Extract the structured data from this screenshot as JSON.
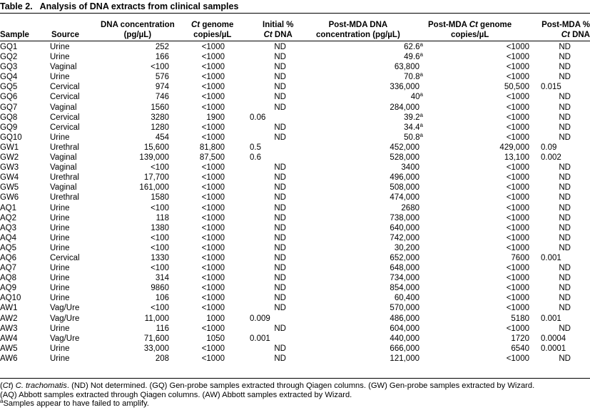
{
  "table": {
    "label": "Table 2.",
    "title": "Analysis of DNA extracts from clinical samples",
    "headers": {
      "sample": "Sample",
      "source": "Source",
      "dna_conc_1": "DNA concentration",
      "dna_conc_2": "(pg/µL)",
      "ct_genome_1a": "Ct",
      "ct_genome_1b": " genome",
      "ct_genome_2": "copies/µL",
      "initial_1": "Initial %",
      "initial_2a": "Ct",
      "initial_2b": " DNA",
      "post_conc_1": "Post-MDA DNA",
      "post_conc_2": "concentration (pg/µL)",
      "post_ct_1a": "Post-MDA ",
      "post_ct_1b": "Ct",
      "post_ct_1c": " genome",
      "post_ct_2": "copies/µL",
      "post_pct_1": "Post-MDA %",
      "post_pct_2a": "Ct",
      "post_pct_2b": " DNA"
    },
    "rows": [
      {
        "sample": "GQ1",
        "source": "Urine",
        "dna": "252",
        "ct": "<1000",
        "init": "ND",
        "post": "62.6",
        "sup": "a",
        "postct": "<1000",
        "postpct": "ND"
      },
      {
        "sample": "GQ2",
        "source": "Urine",
        "dna": "166",
        "ct": "<1000",
        "init": "ND",
        "post": "49.6",
        "sup": "a",
        "postct": "<1000",
        "postpct": "ND"
      },
      {
        "sample": "GQ3",
        "source": "Vaginal",
        "dna": "<100",
        "ct": "<1000",
        "init": "ND",
        "post": "63,800",
        "sup": "",
        "postct": "<1000",
        "postpct": "ND"
      },
      {
        "sample": "GQ4",
        "source": "Urine",
        "dna": "576",
        "ct": "<1000",
        "init": "ND",
        "post": "70.8",
        "sup": "a",
        "postct": "<1000",
        "postpct": "ND"
      },
      {
        "sample": "GQ5",
        "source": "Cervical",
        "dna": "974",
        "ct": "<1000",
        "init": "ND",
        "post": "336,000",
        "sup": "",
        "postct": "50,500",
        "postpct": "0.015"
      },
      {
        "sample": "GQ6",
        "source": "Cervical",
        "dna": "746",
        "ct": "<1000",
        "init": "ND",
        "post": "40",
        "sup": "a",
        "postct": "<1000",
        "postpct": "ND"
      },
      {
        "sample": "GQ7",
        "source": "Vaginal",
        "dna": "1560",
        "ct": "<1000",
        "init": "ND",
        "post": "284,000",
        "sup": "",
        "postct": "<1000",
        "postpct": "ND"
      },
      {
        "sample": "GQ8",
        "source": "Cervical",
        "dna": "3280",
        "ct": "1900",
        "init": "0.06",
        "post": "39.2",
        "sup": "a",
        "postct": "<1000",
        "postpct": "ND"
      },
      {
        "sample": "GQ9",
        "source": "Cervical",
        "dna": "1280",
        "ct": "<1000",
        "init": "ND",
        "post": "34.4",
        "sup": "a",
        "postct": "<1000",
        "postpct": "ND"
      },
      {
        "sample": "GQ10",
        "source": "Urine",
        "dna": "454",
        "ct": "<1000",
        "init": "ND",
        "post": "50.8",
        "sup": "a",
        "postct": "<1000",
        "postpct": "ND"
      },
      {
        "sample": "GW1",
        "source": "Urethral",
        "dna": "15,600",
        "ct": "81,800",
        "init": "0.5",
        "post": "452,000",
        "sup": "",
        "postct": "429,000",
        "postpct": "0.09"
      },
      {
        "sample": "GW2",
        "source": "Vaginal",
        "dna": "139,000",
        "ct": "87,500",
        "init": "0.6",
        "post": "528,000",
        "sup": "",
        "postct": "13,100",
        "postpct": "0.002"
      },
      {
        "sample": "GW3",
        "source": "Vaginal",
        "dna": "<100",
        "ct": "<1000",
        "init": "ND",
        "post": "3400",
        "sup": "",
        "postct": "<1000",
        "postpct": "ND"
      },
      {
        "sample": "GW4",
        "source": "Urethral",
        "dna": "17,700",
        "ct": "<1000",
        "init": "ND",
        "post": "496,000",
        "sup": "",
        "postct": "<1000",
        "postpct": "ND"
      },
      {
        "sample": "GW5",
        "source": "Vaginal",
        "dna": "161,000",
        "ct": "<1000",
        "init": "ND",
        "post": "508,000",
        "sup": "",
        "postct": "<1000",
        "postpct": "ND"
      },
      {
        "sample": "GW6",
        "source": "Urethral",
        "dna": "1580",
        "ct": "<1000",
        "init": "ND",
        "post": "474,000",
        "sup": "",
        "postct": "<1000",
        "postpct": "ND"
      },
      {
        "sample": "AQ1",
        "source": "Urine",
        "dna": "<100",
        "ct": "<1000",
        "init": "ND",
        "post": "2680",
        "sup": "",
        "postct": "<1000",
        "postpct": "ND"
      },
      {
        "sample": "AQ2",
        "source": "Urine",
        "dna": "118",
        "ct": "<1000",
        "init": "ND",
        "post": "738,000",
        "sup": "",
        "postct": "<1000",
        "postpct": "ND"
      },
      {
        "sample": "AQ3",
        "source": "Urine",
        "dna": "1380",
        "ct": "<1000",
        "init": "ND",
        "post": "640,000",
        "sup": "",
        "postct": "<1000",
        "postpct": "ND"
      },
      {
        "sample": "AQ4",
        "source": "Urine",
        "dna": "<100",
        "ct": "<1000",
        "init": "ND",
        "post": "742,000",
        "sup": "",
        "postct": "<1000",
        "postpct": "ND"
      },
      {
        "sample": "AQ5",
        "source": "Urine",
        "dna": "<100",
        "ct": "<1000",
        "init": "ND",
        "post": "30,200",
        "sup": "",
        "postct": "<1000",
        "postpct": "ND"
      },
      {
        "sample": "AQ6",
        "source": "Cervical",
        "dna": "1330",
        "ct": "<1000",
        "init": "ND",
        "post": "652,000",
        "sup": "",
        "postct": "7600",
        "postpct": "0.001"
      },
      {
        "sample": "AQ7",
        "source": "Urine",
        "dna": "<100",
        "ct": "<1000",
        "init": "ND",
        "post": "648,000",
        "sup": "",
        "postct": "<1000",
        "postpct": "ND"
      },
      {
        "sample": "AQ8",
        "source": "Urine",
        "dna": "314",
        "ct": "<1000",
        "init": "ND",
        "post": "734,000",
        "sup": "",
        "postct": "<1000",
        "postpct": "ND"
      },
      {
        "sample": "AQ9",
        "source": "Urine",
        "dna": "9860",
        "ct": "<1000",
        "init": "ND",
        "post": "854,000",
        "sup": "",
        "postct": "<1000",
        "postpct": "ND"
      },
      {
        "sample": "AQ10",
        "source": "Urine",
        "dna": "106",
        "ct": "<1000",
        "init": "ND",
        "post": "60,400",
        "sup": "",
        "postct": "<1000",
        "postpct": "ND"
      },
      {
        "sample": "AW1",
        "source": "Vag/Ure",
        "dna": "<100",
        "ct": "<1000",
        "init": "ND",
        "post": "570,000",
        "sup": "",
        "postct": "<1000",
        "postpct": "ND"
      },
      {
        "sample": "AW2",
        "source": "Vag/Ure",
        "dna": "11,000",
        "ct": "1000",
        "init": "0.009",
        "post": "486,000",
        "sup": "",
        "postct": "5180",
        "postpct": "0.001"
      },
      {
        "sample": "AW3",
        "source": "Urine",
        "dna": "116",
        "ct": "<1000",
        "init": "ND",
        "post": "604,000",
        "sup": "",
        "postct": "<1000",
        "postpct": "ND"
      },
      {
        "sample": "AW4",
        "source": "Vag/Ure",
        "dna": "71,600",
        "ct": "1050",
        "init": "0.001",
        "post": "440,000",
        "sup": "",
        "postct": "1720",
        "postpct": "0.0004"
      },
      {
        "sample": "AW5",
        "source": "Urine",
        "dna": "33,000",
        "ct": "<1000",
        "init": "ND",
        "post": "666,000",
        "sup": "",
        "postct": "6540",
        "postpct": "0.0001"
      },
      {
        "sample": "AW6",
        "source": "Urine",
        "dna": "208",
        "ct": "<1000",
        "init": "ND",
        "post": "121,000",
        "sup": "",
        "postct": "<1000",
        "postpct": "ND"
      }
    ],
    "footnotes": {
      "line1_a": "(",
      "line1_b": "Ct",
      "line1_c": ") ",
      "line1_d": "C. trachomatis",
      "line1_e": ". (ND) Not determined. (GQ) Gen-probe samples extracted through Qiagen columns. (GW) Gen-probe samples extracted by Wizard.",
      "line2": "(AQ) Abbott samples extracted through Qiagen columns. (AW) Abbott samples extracted by Wizard.",
      "line3_sup": "a",
      "line3": "Samples appear to have failed to amplify."
    }
  }
}
